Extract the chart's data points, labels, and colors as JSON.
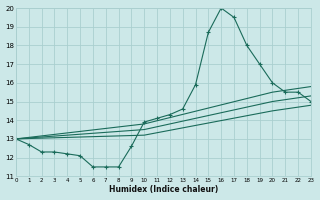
{
  "xlabel": "Humidex (Indice chaleur)",
  "background_color": "#cce8e8",
  "grid_color": "#aacfcf",
  "line_color": "#1a6b5a",
  "xmin": 0,
  "xmax": 23,
  "ymin": 11,
  "ymax": 20,
  "line1_x": [
    0,
    1,
    2,
    3,
    4,
    5,
    6,
    7,
    8,
    9,
    10,
    11,
    12,
    13,
    14,
    15,
    16,
    17,
    18,
    19,
    20,
    21,
    22,
    23
  ],
  "line1_y": [
    13.0,
    12.7,
    12.3,
    12.3,
    12.2,
    12.1,
    11.5,
    11.5,
    11.5,
    12.6,
    13.9,
    14.1,
    14.3,
    14.6,
    15.9,
    18.7,
    20.0,
    19.5,
    18.0,
    17.0,
    16.0,
    15.5,
    15.5,
    15.0
  ],
  "line2_x": [
    0,
    10,
    20,
    23
  ],
  "line2_y": [
    13.0,
    13.8,
    15.5,
    15.8
  ],
  "line3_x": [
    0,
    10,
    20,
    23
  ],
  "line3_y": [
    13.0,
    13.5,
    15.0,
    15.3
  ],
  "line4_x": [
    0,
    10,
    20,
    23
  ],
  "line4_y": [
    13.0,
    13.2,
    14.5,
    14.8
  ],
  "xtick_labels": [
    "0",
    "1",
    "2",
    "3",
    "4",
    "5",
    "6",
    "7",
    "8",
    "9",
    "10",
    "11",
    "12",
    "13",
    "14",
    "15",
    "16",
    "17",
    "18",
    "19",
    "20",
    "21",
    "22",
    "23"
  ],
  "ytick_labels": [
    "11",
    "12",
    "13",
    "14",
    "15",
    "16",
    "17",
    "18",
    "19",
    "20"
  ]
}
